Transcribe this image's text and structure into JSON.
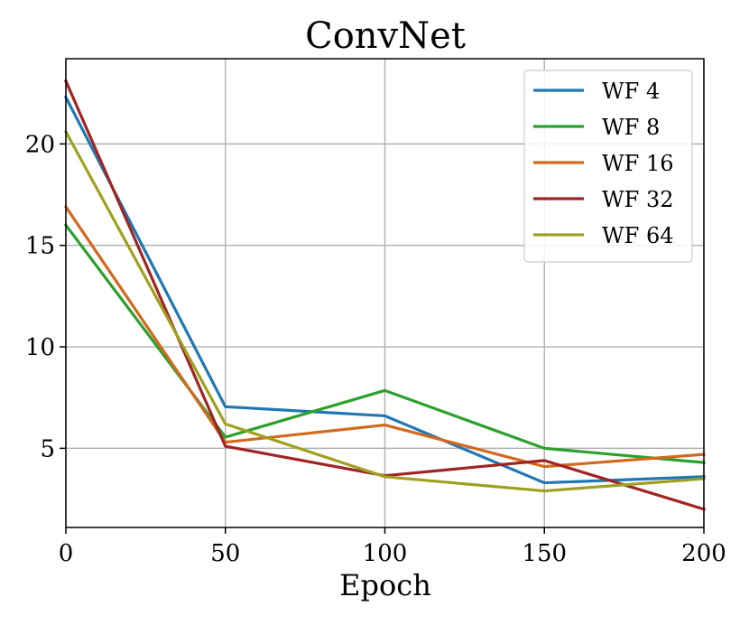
{
  "chart_data": {
    "type": "line",
    "title": "ConvNet",
    "xlabel": "Epoch",
    "ylabel": "",
    "x": [
      0,
      50,
      100,
      150,
      200
    ],
    "xlim": [
      0,
      200
    ],
    "ylim": [
      1.1,
      24.2
    ],
    "xticks": [
      "0",
      "50",
      "100",
      "150",
      "200"
    ],
    "yticks": [
      "5",
      "10",
      "15",
      "20"
    ],
    "grid": true,
    "legend_position": "top-right",
    "series": [
      {
        "name": "WF 4",
        "color": "#1f77b4",
        "values": [
          22.3,
          7.05,
          6.6,
          3.3,
          3.6
        ]
      },
      {
        "name": "WF 8",
        "color": "#2ca02c",
        "values": [
          16.0,
          5.55,
          7.85,
          5.0,
          4.3
        ]
      },
      {
        "name": "WF 16",
        "color": "#d2691e",
        "values": [
          16.9,
          5.3,
          6.15,
          4.1,
          4.7
        ]
      },
      {
        "name": "WF 32",
        "color": "#a02424",
        "values": [
          23.1,
          5.1,
          3.65,
          4.4,
          2.0
        ]
      },
      {
        "name": "WF 64",
        "color": "#a0a020",
        "values": [
          20.6,
          6.2,
          3.6,
          2.9,
          3.5
        ]
      }
    ]
  }
}
